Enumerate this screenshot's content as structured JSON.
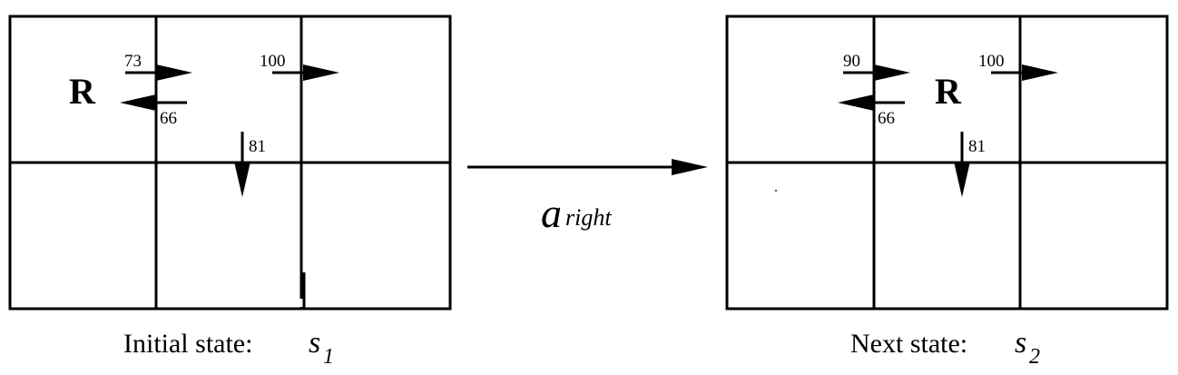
{
  "left_state": {
    "robot_label": "R",
    "q_right": "73",
    "q_left": "66",
    "q_top_right": "100",
    "q_down": "81",
    "caption": "Initial state:",
    "state_symbol": "s",
    "state_subscript": "1"
  },
  "right_state": {
    "robot_label": "R",
    "q_right": "90",
    "q_left": "66",
    "q_top_right": "100",
    "q_down": "81",
    "caption": "Next state:",
    "state_symbol": "s",
    "state_subscript": "2"
  },
  "transition": {
    "action_symbol": "a",
    "action_subscript": "right"
  }
}
